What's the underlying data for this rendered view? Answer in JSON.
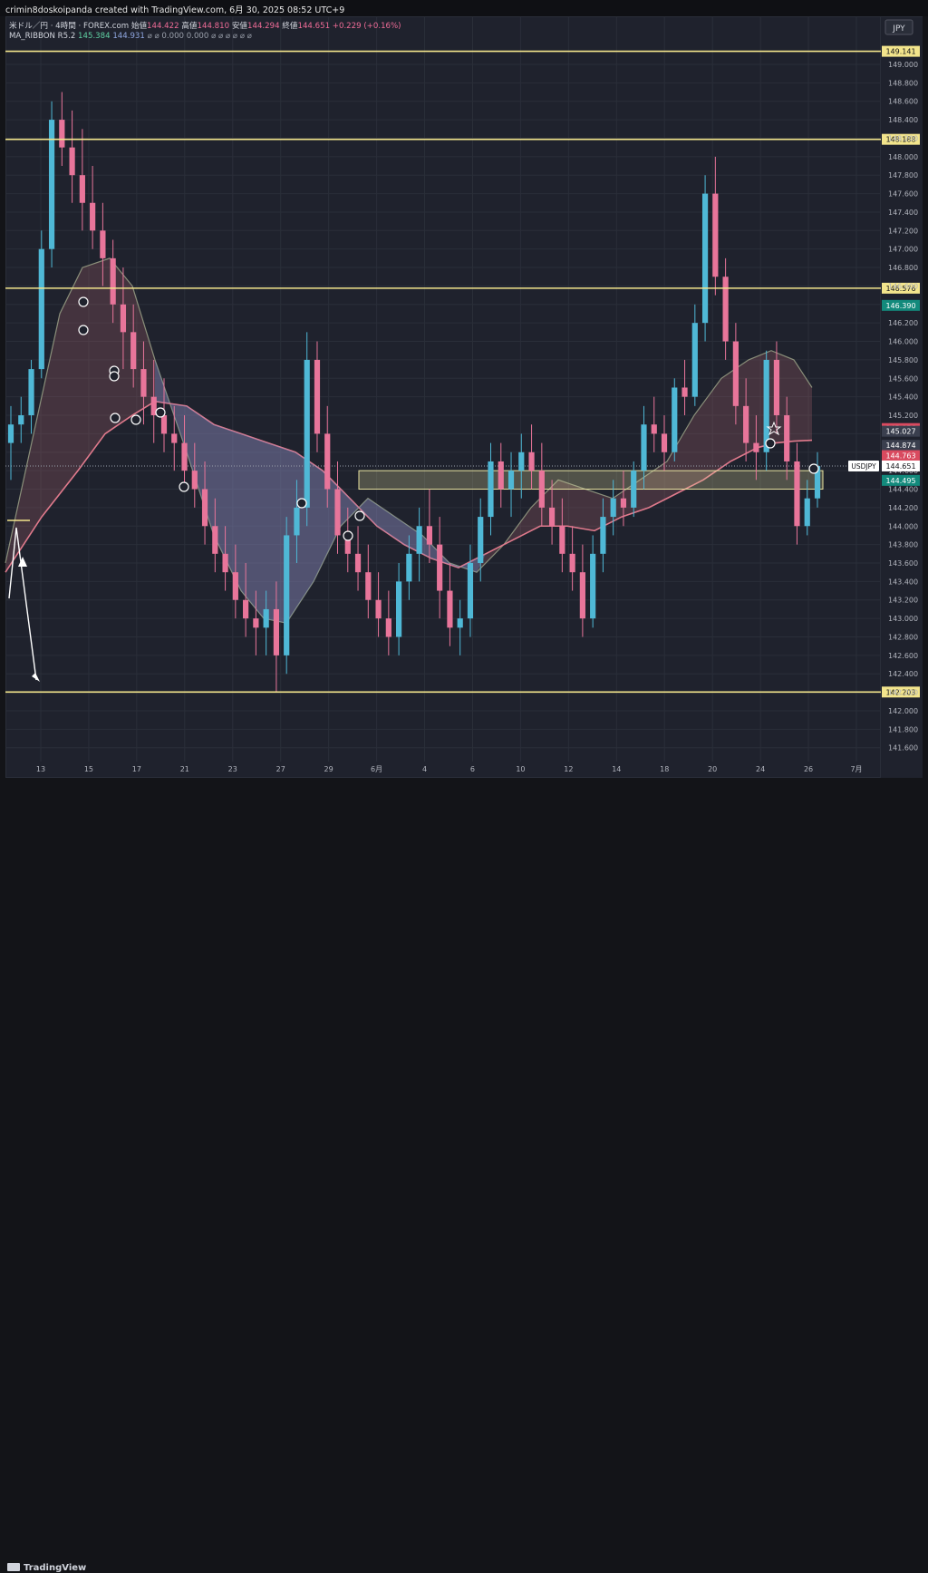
{
  "header": {
    "credit": "crimin8doskoipanda created with TradingView.com, 6月 30, 2025 08:52 UTC+9"
  },
  "legend": {
    "symbol": "米ドル／円 · 4時間 · FOREX.com",
    "open_label": "始値",
    "open": "144.422",
    "high_label": "高値",
    "high": "144.810",
    "low_label": "安値",
    "low": "144.294",
    "close_label": "終値",
    "close": "144.651",
    "change": "+0.229 (+0.16%)",
    "indicator": "MA_RIBBON R5.2",
    "ind_v1": "145.384",
    "ind_v2": "144.931",
    "ind_rest": "⌀ ⌀ 0.000 0.000 ⌀ ⌀ ⌀ ⌀ ⌀ ⌀"
  },
  "axis": {
    "currency": "JPY",
    "symbol_tag": "USDJPY"
  },
  "footer": {
    "brand": "TradingView"
  },
  "colors": {
    "bg": "#1f222d",
    "grid": "#2a2e39",
    "up": "#4fb8d6",
    "down": "#e8759a",
    "level": "#f3e58c",
    "text": "#d1d4dc"
  },
  "chart_data": {
    "type": "candlestick",
    "symbol": "USDJPY",
    "timeframe": "4時間",
    "ylim": [
      141.45,
      149.52
    ],
    "y_ticks": [
      "149.000",
      "148.800",
      "148.600",
      "148.400",
      "148.200",
      "148.000",
      "147.800",
      "147.600",
      "147.400",
      "147.200",
      "147.000",
      "146.800",
      "146.600",
      "146.400",
      "146.200",
      "146.000",
      "145.800",
      "145.600",
      "145.400",
      "145.200",
      "145.000",
      "144.800",
      "144.600",
      "144.400",
      "144.200",
      "144.000",
      "143.800",
      "143.600",
      "143.400",
      "143.200",
      "143.000",
      "142.800",
      "142.600",
      "142.400",
      "142.200",
      "142.000",
      "141.800",
      "141.600"
    ],
    "x_ticks": [
      "13",
      "15",
      "17",
      "21",
      "23",
      "27",
      "29",
      "6月",
      "4",
      "6",
      "10",
      "12",
      "14",
      "18",
      "20",
      "24",
      "26",
      "7月"
    ],
    "horizontal_levels": [
      {
        "label": "149.141",
        "value": 149.141
      },
      {
        "label": "148.188",
        "value": 148.188
      },
      {
        "label": "146.576",
        "value": 146.576
      },
      {
        "label": "142.203",
        "value": 142.203
      }
    ],
    "price_labels": [
      {
        "label": "146.390",
        "value": 146.39,
        "color": "#138a7c"
      },
      {
        "label": "145.056",
        "value": 145.056,
        "color": "#d94a5f"
      },
      {
        "label": "145.027",
        "value": 145.027,
        "color": "#3a3f4e"
      },
      {
        "label": "144.874",
        "value": 144.874,
        "color": "#3a3f4e"
      },
      {
        "label": "144.763",
        "value": 144.763,
        "color": "#d94a5f"
      },
      {
        "label": "144.651",
        "value": 144.651,
        "color": "#ffffff"
      },
      {
        "label": "144.495",
        "value": 144.495,
        "color": "#138a7c"
      }
    ],
    "zone": {
      "top": 144.6,
      "bottom": 144.4
    },
    "current_price": 144.651,
    "ma_fast": [
      [
        0,
        143.6
      ],
      [
        40,
        145.4
      ],
      [
        60,
        146.3
      ],
      [
        85,
        146.8
      ],
      [
        115,
        146.9
      ],
      [
        140,
        146.6
      ],
      [
        165,
        145.8
      ],
      [
        200,
        144.8
      ],
      [
        230,
        143.9
      ],
      [
        260,
        143.3
      ],
      [
        285,
        143.0
      ],
      [
        310,
        142.95
      ],
      [
        340,
        143.4
      ],
      [
        370,
        144.0
      ],
      [
        400,
        144.3
      ],
      [
        430,
        144.1
      ],
      [
        460,
        143.9
      ],
      [
        490,
        143.6
      ],
      [
        520,
        143.5
      ],
      [
        550,
        143.8
      ],
      [
        580,
        144.2
      ],
      [
        610,
        144.5
      ],
      [
        640,
        144.4
      ],
      [
        670,
        144.3
      ],
      [
        700,
        144.5
      ],
      [
        730,
        144.7
      ],
      [
        760,
        145.2
      ],
      [
        790,
        145.6
      ],
      [
        820,
        145.8
      ],
      [
        845,
        145.9
      ],
      [
        870,
        145.8
      ],
      [
        890,
        145.5
      ]
    ],
    "ma_slow": [
      [
        0,
        143.5
      ],
      [
        40,
        144.1
      ],
      [
        80,
        144.6
      ],
      [
        110,
        145.0
      ],
      [
        140,
        145.2
      ],
      [
        165,
        145.35
      ],
      [
        200,
        145.3
      ],
      [
        230,
        145.1
      ],
      [
        260,
        145.0
      ],
      [
        290,
        144.9
      ],
      [
        320,
        144.8
      ],
      [
        350,
        144.6
      ],
      [
        380,
        144.3
      ],
      [
        410,
        144.0
      ],
      [
        440,
        143.8
      ],
      [
        470,
        143.65
      ],
      [
        500,
        143.55
      ],
      [
        530,
        143.7
      ],
      [
        560,
        143.85
      ],
      [
        590,
        144.0
      ],
      [
        620,
        144.0
      ],
      [
        650,
        143.95
      ],
      [
        680,
        144.1
      ],
      [
        710,
        144.2
      ],
      [
        740,
        144.35
      ],
      [
        770,
        144.5
      ],
      [
        800,
        144.7
      ],
      [
        830,
        144.85
      ],
      [
        850,
        144.9
      ],
      [
        870,
        144.92
      ],
      [
        890,
        144.93
      ]
    ],
    "candles": [
      [
        144.9,
        145.3,
        144.5,
        145.1
      ],
      [
        145.1,
        145.4,
        144.9,
        145.2
      ],
      [
        145.2,
        145.8,
        145.0,
        145.7
      ],
      [
        145.7,
        147.2,
        145.6,
        147.0
      ],
      [
        147.0,
        148.6,
        146.8,
        148.4
      ],
      [
        148.4,
        148.7,
        147.9,
        148.1
      ],
      [
        148.1,
        148.5,
        147.5,
        147.8
      ],
      [
        147.8,
        148.3,
        147.2,
        147.5
      ],
      [
        147.5,
        147.9,
        147.0,
        147.2
      ],
      [
        147.2,
        147.5,
        146.6,
        146.9
      ],
      [
        146.9,
        147.1,
        146.2,
        146.4
      ],
      [
        146.4,
        146.8,
        145.7,
        146.1
      ],
      [
        146.1,
        146.4,
        145.5,
        145.7
      ],
      [
        145.7,
        146.0,
        145.1,
        145.4
      ],
      [
        145.4,
        145.8,
        144.9,
        145.2
      ],
      [
        145.2,
        145.6,
        144.8,
        145.0
      ],
      [
        145.0,
        145.3,
        144.6,
        144.9
      ],
      [
        144.9,
        145.2,
        144.4,
        144.6
      ],
      [
        144.6,
        144.9,
        144.2,
        144.4
      ],
      [
        144.4,
        144.7,
        143.8,
        144.0
      ],
      [
        144.0,
        144.3,
        143.5,
        143.7
      ],
      [
        143.7,
        144.0,
        143.3,
        143.5
      ],
      [
        143.5,
        143.8,
        143.0,
        143.2
      ],
      [
        143.2,
        143.6,
        142.8,
        143.0
      ],
      [
        143.0,
        143.3,
        142.6,
        142.9
      ],
      [
        142.9,
        143.3,
        142.6,
        143.1
      ],
      [
        143.1,
        143.4,
        142.2,
        142.6
      ],
      [
        142.6,
        144.1,
        142.4,
        143.9
      ],
      [
        143.9,
        144.5,
        143.6,
        144.2
      ],
      [
        144.2,
        146.1,
        144.0,
        145.8
      ],
      [
        145.8,
        146.0,
        144.8,
        145.0
      ],
      [
        145.0,
        145.3,
        144.2,
        144.4
      ],
      [
        144.4,
        144.7,
        143.7,
        143.9
      ],
      [
        143.9,
        144.2,
        143.5,
        143.7
      ],
      [
        143.7,
        144.0,
        143.3,
        143.5
      ],
      [
        143.5,
        143.8,
        143.0,
        143.2
      ],
      [
        143.2,
        143.5,
        142.8,
        143.0
      ],
      [
        143.0,
        143.3,
        142.6,
        142.8
      ],
      [
        142.8,
        143.6,
        142.6,
        143.4
      ],
      [
        143.4,
        143.9,
        143.2,
        143.7
      ],
      [
        143.7,
        144.2,
        143.4,
        144.0
      ],
      [
        144.0,
        144.4,
        143.6,
        143.8
      ],
      [
        143.8,
        144.1,
        143.0,
        143.3
      ],
      [
        143.3,
        143.6,
        142.7,
        142.9
      ],
      [
        142.9,
        143.2,
        142.6,
        143.0
      ],
      [
        143.0,
        143.8,
        142.8,
        143.6
      ],
      [
        143.6,
        144.3,
        143.4,
        144.1
      ],
      [
        144.1,
        144.9,
        143.9,
        144.7
      ],
      [
        144.7,
        144.9,
        144.2,
        144.4
      ],
      [
        144.4,
        144.8,
        144.1,
        144.6
      ],
      [
        144.6,
        145.0,
        144.3,
        144.8
      ],
      [
        144.8,
        145.1,
        144.4,
        144.6
      ],
      [
        144.6,
        144.9,
        144.0,
        144.2
      ],
      [
        144.2,
        144.5,
        143.8,
        144.0
      ],
      [
        144.0,
        144.3,
        143.5,
        143.7
      ],
      [
        143.7,
        144.0,
        143.3,
        143.5
      ],
      [
        143.5,
        143.8,
        142.8,
        143.0
      ],
      [
        143.0,
        143.9,
        142.9,
        143.7
      ],
      [
        143.7,
        144.3,
        143.5,
        144.1
      ],
      [
        144.1,
        144.5,
        143.9,
        144.3
      ],
      [
        144.3,
        144.6,
        144.0,
        144.2
      ],
      [
        144.2,
        144.7,
        144.1,
        144.6
      ],
      [
        144.6,
        145.3,
        144.4,
        145.1
      ],
      [
        145.1,
        145.4,
        144.8,
        145.0
      ],
      [
        145.0,
        145.2,
        144.6,
        144.8
      ],
      [
        144.8,
        145.6,
        144.7,
        145.5
      ],
      [
        145.5,
        145.8,
        145.2,
        145.4
      ],
      [
        145.4,
        146.4,
        145.3,
        146.2
      ],
      [
        146.2,
        147.8,
        146.0,
        147.6
      ],
      [
        147.6,
        148.0,
        146.5,
        146.7
      ],
      [
        146.7,
        146.9,
        145.8,
        146.0
      ],
      [
        146.0,
        146.2,
        145.1,
        145.3
      ],
      [
        145.3,
        145.6,
        144.7,
        144.9
      ],
      [
        144.9,
        145.2,
        144.5,
        144.8
      ],
      [
        144.8,
        145.9,
        144.6,
        145.8
      ],
      [
        145.8,
        146.0,
        145.0,
        145.2
      ],
      [
        145.2,
        145.4,
        144.5,
        144.7
      ],
      [
        144.7,
        144.9,
        143.8,
        144.0
      ],
      [
        144.0,
        144.5,
        143.9,
        144.3
      ],
      [
        144.3,
        144.8,
        144.2,
        144.65
      ]
    ]
  }
}
